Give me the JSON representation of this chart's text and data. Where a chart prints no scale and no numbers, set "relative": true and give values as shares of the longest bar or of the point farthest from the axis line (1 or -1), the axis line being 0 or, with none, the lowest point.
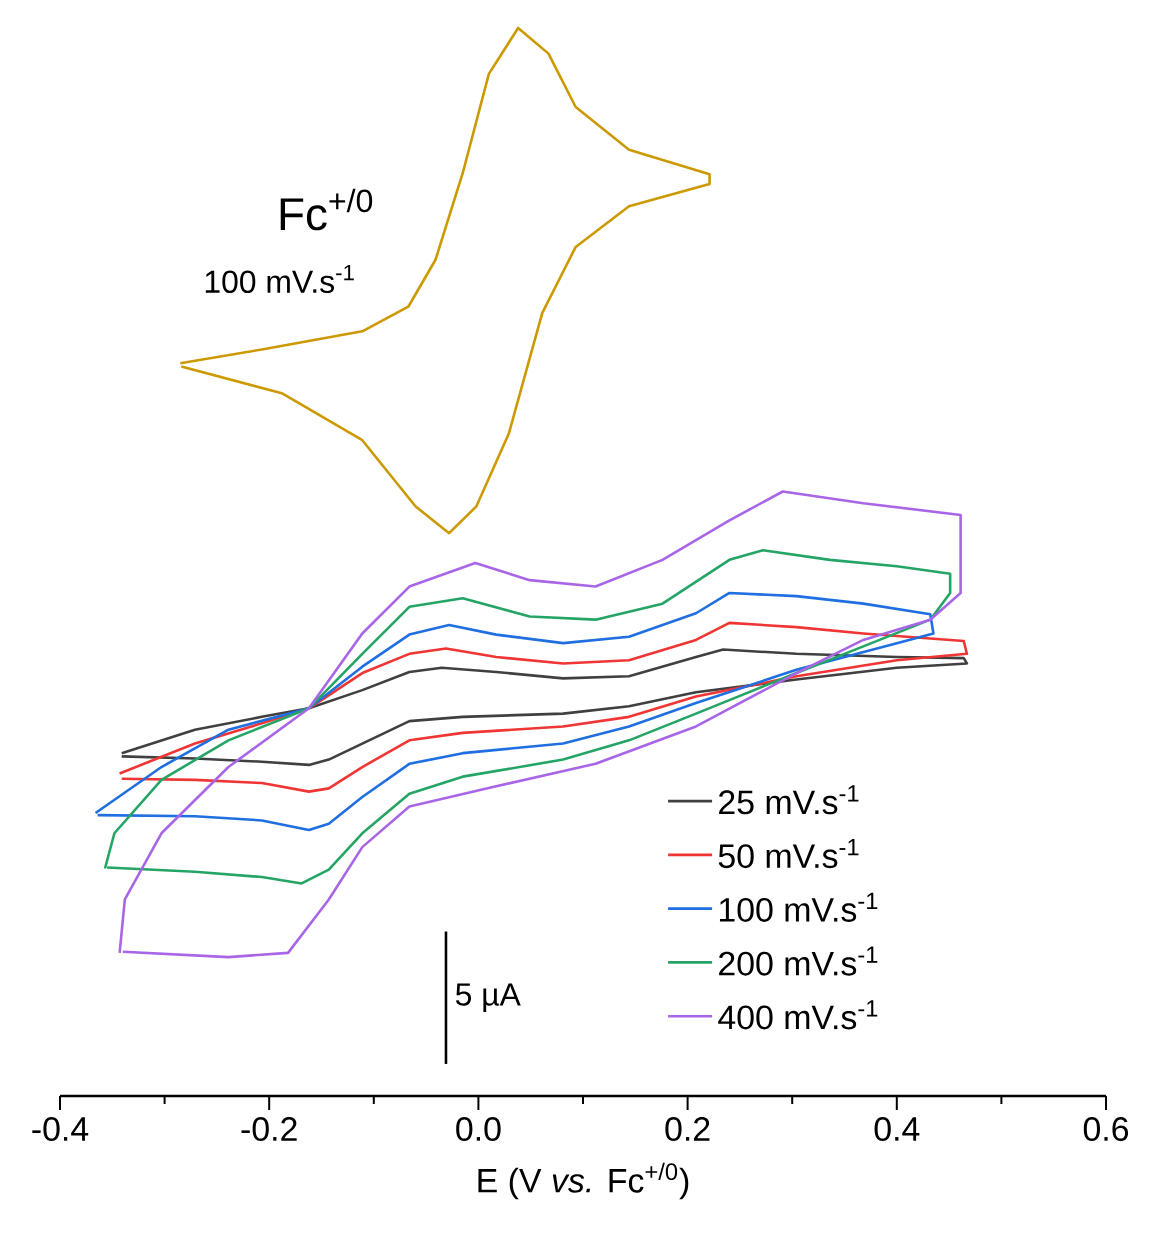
{
  "chart_data": {
    "type": "line",
    "relative": true,
    "xlabel": "E (V *vs.* Fc$^{+/0}$)",
    "xlim": [
      -0.4,
      0.6
    ],
    "xticks": [
      -0.4,
      -0.2,
      {
        "value": 0,
        "label": "0.0"
      },
      0.2,
      0.4,
      0.6
    ],
    "tick_labels": "x",
    "legend": "bottom right",
    "marker": "none",
    "annotations": [
      "Fc$^{+/0}$",
      "100 mV.s$^{-1}$",
      "5 µA"
    ],
    "series": [
      {
        "color": "#cc9900",
        "x": [
          -0.285,
          -0.207,
          -0.111,
          -0.067,
          -0.041,
          -0.015,
          0.01,
          0.038,
          0.067,
          0.093,
          0.144,
          0.221,
          0.221,
          0.144,
          0.093,
          0.061,
          0.029,
          -0.002,
          -0.028,
          -0.06,
          -0.111,
          -0.188,
          -0.284
        ],
        "values": [
          0.686,
          0.699,
          0.716,
          0.739,
          0.783,
          0.864,
          0.957,
          1.0,
          0.976,
          0.926,
          0.886,
          0.863,
          0.854,
          0.833,
          0.795,
          0.733,
          0.62,
          0.552,
          0.527,
          0.552,
          0.614,
          0.658,
          0.683
        ]
      },
      {
        "name": "25 mV.s$^{-1}$",
        "color": "#404040",
        "x": [
          -0.341,
          -0.271,
          -0.207,
          -0.162,
          -0.111,
          -0.066,
          -0.035,
          0.017,
          0.081,
          0.144,
          0.208,
          0.234,
          0.304,
          0.4,
          0.464,
          0.467,
          0.4,
          0.304,
          0.208,
          0.144,
          0.081,
          -0.015,
          -0.066,
          -0.111,
          -0.143,
          -0.162,
          -0.207,
          -0.271,
          -0.341
        ],
        "values": [
          0.321,
          0.343,
          0.355,
          0.363,
          0.38,
          0.397,
          0.401,
          0.397,
          0.391,
          0.393,
          0.411,
          0.418,
          0.414,
          0.411,
          0.41,
          0.405,
          0.401,
          0.39,
          0.378,
          0.365,
          0.358,
          0.355,
          0.351,
          0.33,
          0.315,
          0.31,
          0.313,
          0.316,
          0.318
        ]
      },
      {
        "name": "50 mV.s$^{-1}$",
        "color": "#f03535",
        "x": [
          -0.343,
          -0.271,
          -0.207,
          -0.162,
          -0.111,
          -0.066,
          -0.031,
          0.017,
          0.081,
          0.144,
          0.208,
          0.24,
          0.304,
          0.368,
          0.464,
          0.467,
          0.4,
          0.304,
          0.208,
          0.144,
          0.081,
          -0.015,
          -0.066,
          -0.111,
          -0.143,
          -0.162,
          -0.207,
          -0.271,
          -0.341
        ],
        "values": [
          0.302,
          0.33,
          0.349,
          0.363,
          0.396,
          0.414,
          0.419,
          0.411,
          0.405,
          0.408,
          0.427,
          0.443,
          0.439,
          0.433,
          0.426,
          0.414,
          0.408,
          0.393,
          0.374,
          0.355,
          0.346,
          0.34,
          0.333,
          0.308,
          0.288,
          0.285,
          0.293,
          0.296,
          0.297
        ]
      },
      {
        "name": "100 mV.s$^{-1}$",
        "color": "#1f6fe0",
        "x": [
          -0.366,
          -0.303,
          -0.239,
          -0.162,
          -0.111,
          -0.066,
          -0.028,
          0.017,
          0.081,
          0.144,
          0.208,
          0.24,
          0.304,
          0.368,
          0.432,
          0.435,
          0.4,
          0.304,
          0.208,
          0.144,
          0.081,
          -0.015,
          -0.066,
          -0.111,
          -0.143,
          -0.162,
          -0.207,
          -0.271,
          -0.364
        ],
        "values": [
          0.265,
          0.308,
          0.343,
          0.363,
          0.402,
          0.432,
          0.441,
          0.432,
          0.424,
          0.43,
          0.452,
          0.471,
          0.468,
          0.461,
          0.451,
          0.433,
          0.424,
          0.399,
          0.368,
          0.346,
          0.33,
          0.321,
          0.311,
          0.28,
          0.255,
          0.249,
          0.258,
          0.262,
          0.263
        ]
      },
      {
        "name": "200 mV.s$^{-1}$",
        "color": "#25a565",
        "x": [
          -0.357,
          -0.348,
          -0.303,
          -0.239,
          -0.162,
          -0.111,
          -0.066,
          -0.015,
          0.049,
          0.112,
          0.176,
          0.24,
          0.272,
          0.336,
          0.4,
          0.451,
          0.451,
          0.432,
          0.368,
          0.304,
          0.208,
          0.144,
          0.081,
          -0.015,
          -0.066,
          -0.111,
          -0.143,
          -0.169,
          -0.207,
          -0.271,
          -0.355
        ],
        "values": [
          0.213,
          0.246,
          0.296,
          0.333,
          0.363,
          0.414,
          0.458,
          0.466,
          0.449,
          0.446,
          0.461,
          0.502,
          0.511,
          0.502,
          0.496,
          0.489,
          0.471,
          0.446,
          0.421,
          0.396,
          0.358,
          0.333,
          0.315,
          0.299,
          0.283,
          0.246,
          0.212,
          0.199,
          0.205,
          0.21,
          0.214
        ]
      },
      {
        "type": "line",
        "color": "#000000",
        "x": [
          -0.031,
          -0.031
        ],
        "values": [
          0.03,
          0.154
        ]
      },
      {
        "name": "400 mV.s$^{-1}$",
        "color": "#a866e6",
        "x": [
          -0.343,
          -0.338,
          -0.303,
          -0.239,
          -0.162,
          -0.111,
          -0.066,
          -0.003,
          0.049,
          0.112,
          0.176,
          0.24,
          0.291,
          0.368,
          0.461,
          0.461,
          0.432,
          0.368,
          0.304,
          0.208,
          0.112,
          0.017,
          -0.066,
          -0.111,
          -0.143,
          -0.182,
          -0.239,
          -0.34
        ],
        "values": [
          0.134,
          0.184,
          0.246,
          0.308,
          0.363,
          0.433,
          0.477,
          0.499,
          0.483,
          0.477,
          0.502,
          0.539,
          0.566,
          0.555,
          0.544,
          0.471,
          0.446,
          0.427,
          0.396,
          0.346,
          0.311,
          0.29,
          0.271,
          0.233,
          0.184,
          0.134,
          0.13,
          0.135
        ]
      }
    ]
  }
}
